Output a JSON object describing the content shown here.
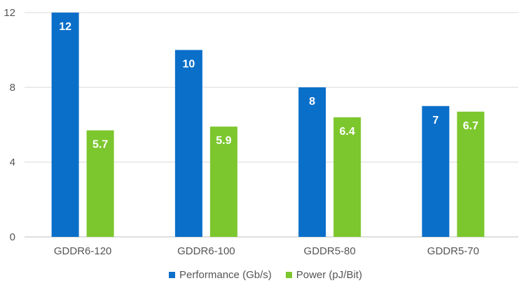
{
  "chart_data": {
    "type": "bar",
    "categories": [
      "GDDR6-120",
      "GDDR6-100",
      "GDDR5-80",
      "GDDR5-70"
    ],
    "series": [
      {
        "name": "Performance (Gb/s)",
        "values": [
          12,
          10,
          8,
          7
        ],
        "labels": [
          "12",
          "10",
          "8",
          "7"
        ],
        "color": "#0A6FC9"
      },
      {
        "name": "Power (pJ/Bit)",
        "values": [
          5.7,
          5.9,
          6.4,
          6.7
        ],
        "labels": [
          "5.7",
          "5.9",
          "6.4",
          "6.7"
        ],
        "color": "#7DC72E"
      }
    ],
    "yticks": [
      "0",
      "4",
      "8",
      "12"
    ],
    "ylim": [
      0,
      12
    ],
    "grid": true,
    "legend_position": "bottom"
  }
}
